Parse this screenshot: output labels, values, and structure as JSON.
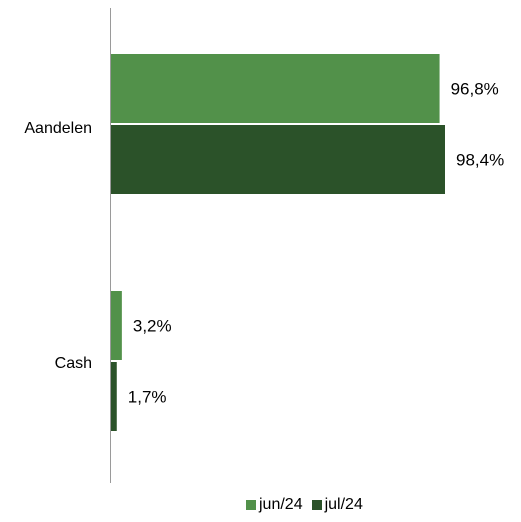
{
  "chart_data": {
    "type": "bar",
    "orientation": "horizontal",
    "categories": [
      "Aandelen",
      "Cash"
    ],
    "series": [
      {
        "name": "jun/24",
        "values": [
          96.8,
          3.2
        ],
        "labels": [
          "96,8%",
          "3,2%"
        ],
        "color": "#52914a"
      },
      {
        "name": "jul/24",
        "values": [
          98.4,
          1.7
        ],
        "labels": [
          "98,4%",
          "1,7%"
        ],
        "color": "#2b5229"
      }
    ],
    "xlim": [
      0,
      98.4
    ],
    "legend_position": "bottom",
    "grid": false,
    "title": "",
    "xlabel": "",
    "ylabel": ""
  }
}
